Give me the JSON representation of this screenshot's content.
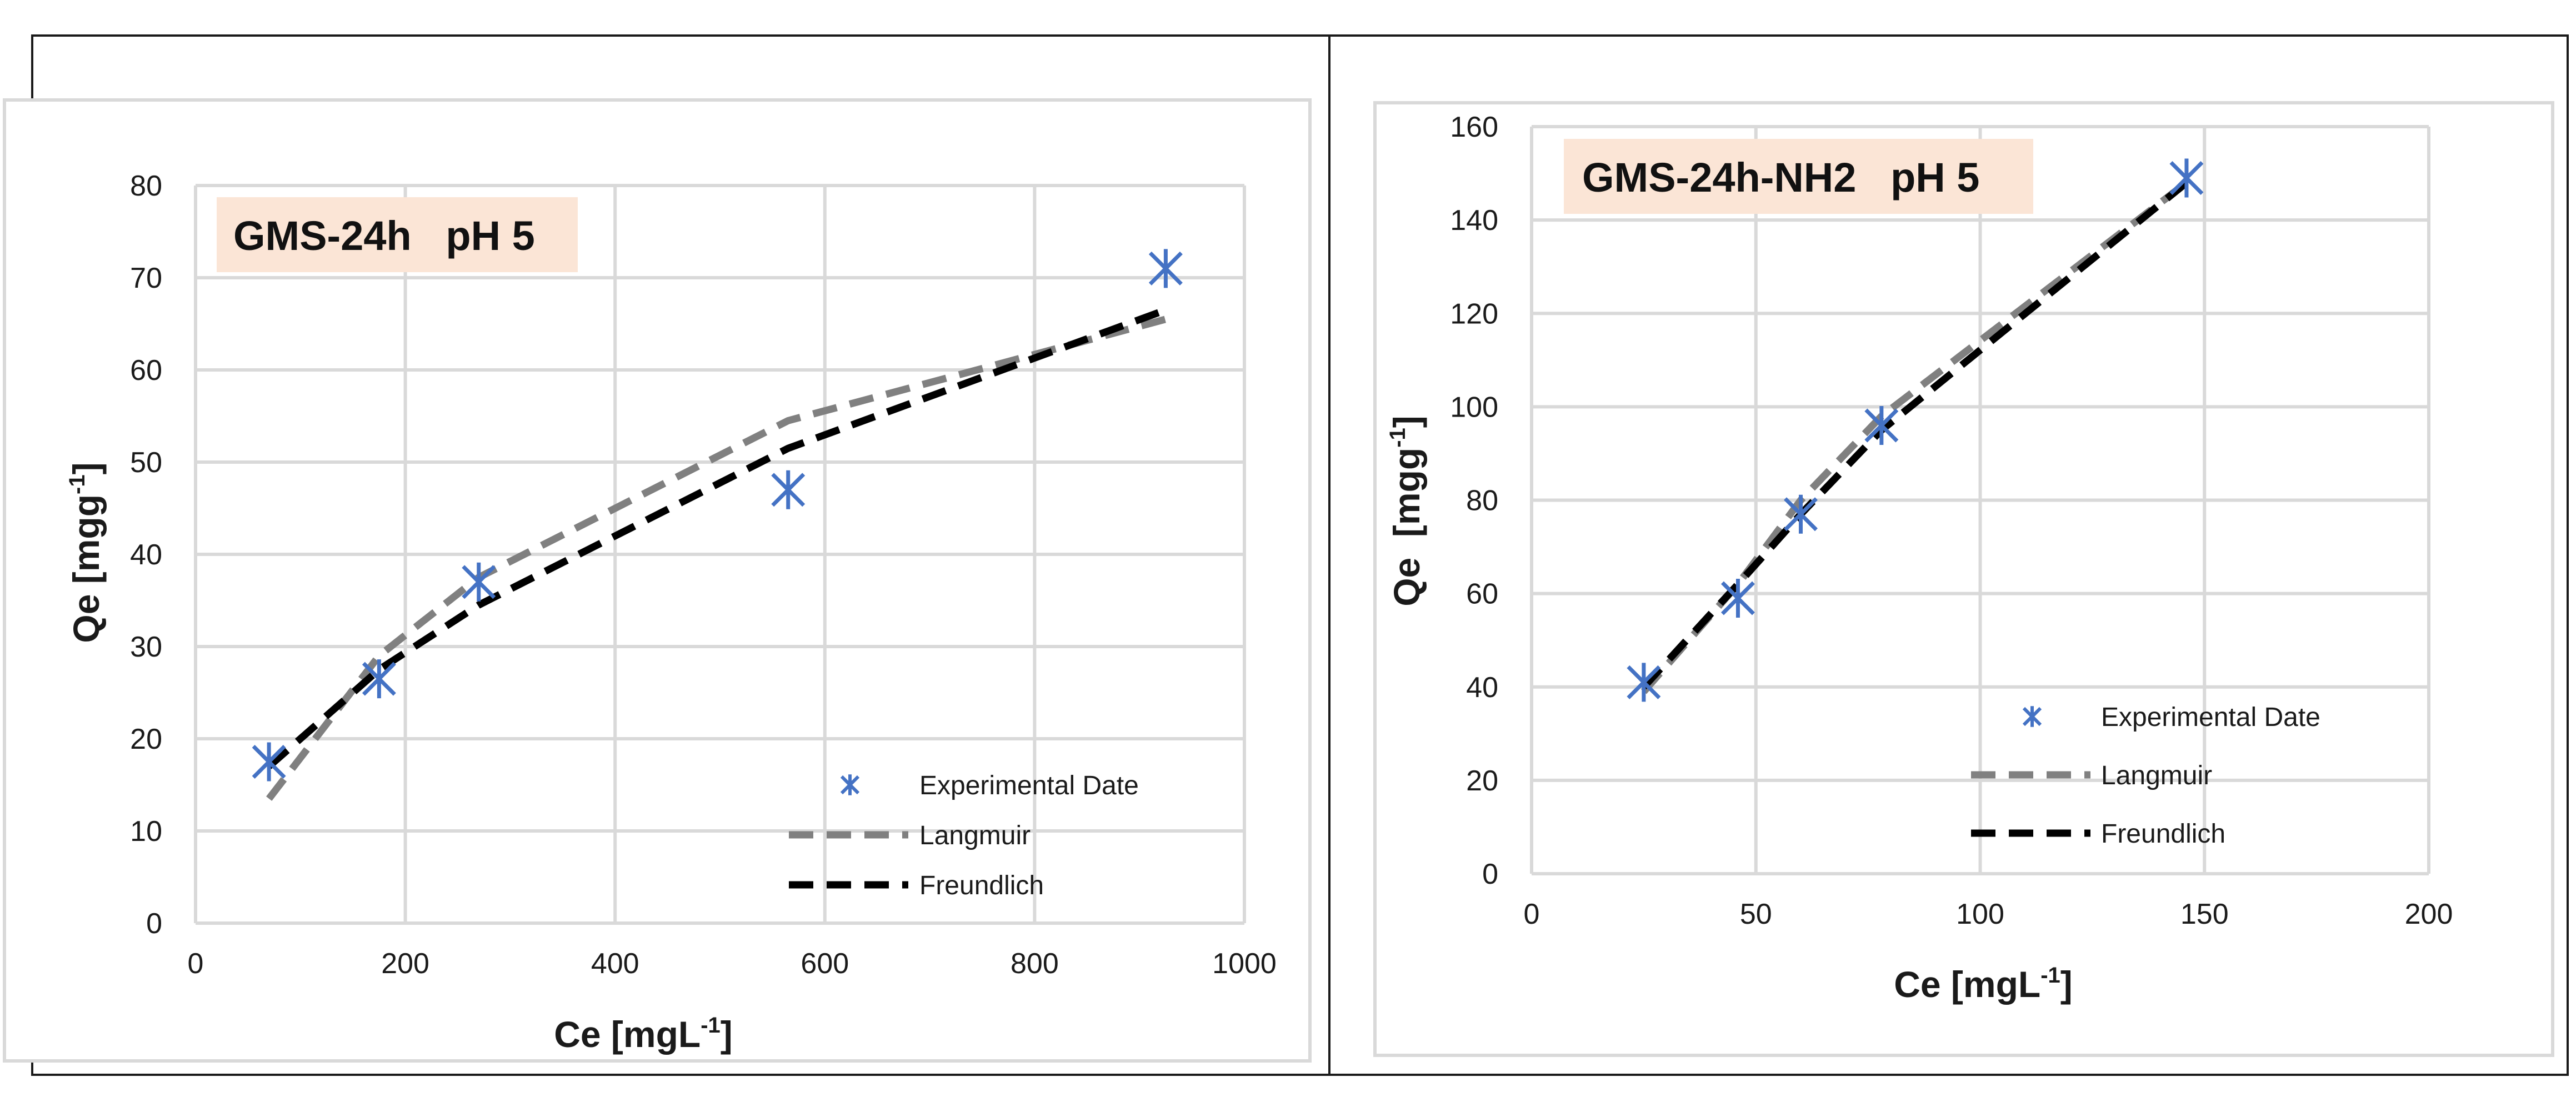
{
  "chart_data": [
    {
      "type": "scatter",
      "annotation": "GMS-24h   pH 5",
      "xlabel_main": "Ce [mgL",
      "xlabel_sup": "-1",
      "xlabel_tail": "]",
      "ylabel_main": "Qe [mgg",
      "ylabel_sup": "-1",
      "ylabel_tail": "]",
      "xlim": [
        0,
        1000
      ],
      "ylim": [
        0,
        80
      ],
      "xticks": [
        0,
        200,
        400,
        600,
        800,
        1000
      ],
      "yticks": [
        0,
        10,
        20,
        30,
        40,
        50,
        60,
        70,
        80
      ],
      "grid": true,
      "legend_position": "bottom-right",
      "series": [
        {
          "name": "Experimental Date",
          "kind": "markers",
          "color": "#4472C4",
          "x": [
            70,
            175,
            270,
            565,
            925
          ],
          "y": [
            17.5,
            26.5,
            37,
            47,
            71
          ]
        },
        {
          "name": "Langmuir",
          "kind": "dashed-line",
          "color": "#808080",
          "x": [
            70,
            175,
            270,
            565,
            925
          ],
          "y": [
            13.5,
            29,
            37.5,
            54.5,
            65.5
          ]
        },
        {
          "name": "Freundlich",
          "kind": "dashed-line",
          "color": "#000000",
          "x": [
            70,
            175,
            270,
            565,
            925
          ],
          "y": [
            17,
            27.5,
            34.5,
            51.5,
            66.5
          ]
        }
      ]
    },
    {
      "type": "scatter",
      "annotation": "GMS-24h-NH2   pH 5",
      "xlabel_main": "Ce [mgL",
      "xlabel_sup": "-1",
      "xlabel_tail": "]",
      "ylabel_main": "Qe  [mgg",
      "ylabel_sup": "-1",
      "ylabel_tail": "]",
      "xlim": [
        0,
        200
      ],
      "ylim": [
        0,
        160
      ],
      "xticks": [
        0,
        50,
        100,
        150,
        200
      ],
      "yticks": [
        0,
        20,
        40,
        60,
        80,
        100,
        120,
        140,
        160
      ],
      "grid": true,
      "legend_position": "bottom-right",
      "series": [
        {
          "name": "Experimental Date",
          "kind": "markers",
          "color": "#4472C4",
          "x": [
            25,
            46,
            60,
            78,
            146
          ],
          "y": [
            41,
            59,
            77,
            96,
            149
          ]
        },
        {
          "name": "Langmuir",
          "kind": "dashed-line",
          "color": "#808080",
          "x": [
            25,
            46,
            60,
            78,
            146
          ],
          "y": [
            39,
            62,
            80,
            98,
            148
          ]
        },
        {
          "name": "Freundlich",
          "kind": "dashed-line",
          "color": "#000000",
          "x": [
            25,
            46,
            60,
            78,
            146
          ],
          "y": [
            40,
            62,
            77,
            95,
            148
          ]
        }
      ]
    }
  ]
}
